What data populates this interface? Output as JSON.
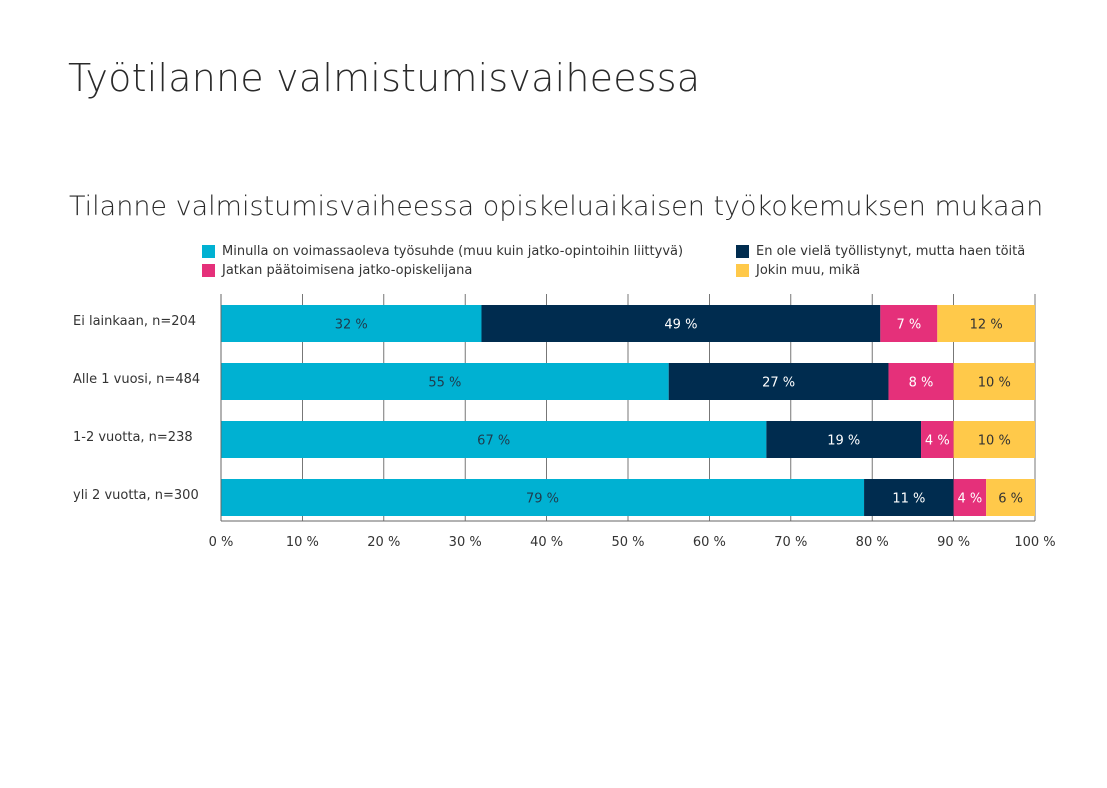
{
  "page_title": "Työtilanne valmistumisvaiheessa",
  "chart_data": {
    "type": "bar",
    "orientation": "horizontal",
    "stacked": true,
    "title": "Tilanne valmistumisvaiheessa opiskeluaikaisen työkokemuksen mukaan",
    "categories": [
      "Ei lainkaan, n=204",
      "Alle 1 vuosi, n=484",
      "1-2 vuotta, n=238",
      "yli 2 vuotta, n=300"
    ],
    "series": [
      {
        "name": "Minulla on voimassaoleva työsuhde (muu kuin jatko-opintoihin liittyvä)",
        "color": "#00b1d2",
        "label_color": "#1f3b4d",
        "values": [
          32,
          55,
          67,
          79
        ],
        "labels": [
          "32 %",
          "55 %",
          "67 %",
          "79 %"
        ]
      },
      {
        "name": "En ole vielä työllistynyt, mutta haen töitä",
        "color": "#002c4f",
        "label_color": "#ffffff",
        "values": [
          49,
          27,
          19,
          11
        ],
        "labels": [
          "49 %",
          "27 %",
          "19 %",
          "11 %"
        ]
      },
      {
        "name": "Jatkan päätoimisena jatko-opiskelijana",
        "color": "#e5307a",
        "label_color": "#ffffff",
        "values": [
          7,
          8,
          4,
          4
        ],
        "labels": [
          "7 %",
          "8 %",
          "4 %",
          "4 %"
        ]
      },
      {
        "name": "Jokin muu, mikä",
        "color": "#ffc94a",
        "label_color": "#333333",
        "values": [
          12,
          10,
          10,
          6
        ],
        "labels": [
          "12 %",
          "10 %",
          "10 %",
          "6 %"
        ]
      }
    ],
    "xlim": [
      0,
      100
    ],
    "x_ticks": [
      "0 %",
      "10 %",
      "20 %",
      "30 %",
      "40 %",
      "50 %",
      "60 %",
      "70 %",
      "80 %",
      "90 %",
      "100 %"
    ],
    "grid": true,
    "legend_position": "top"
  }
}
